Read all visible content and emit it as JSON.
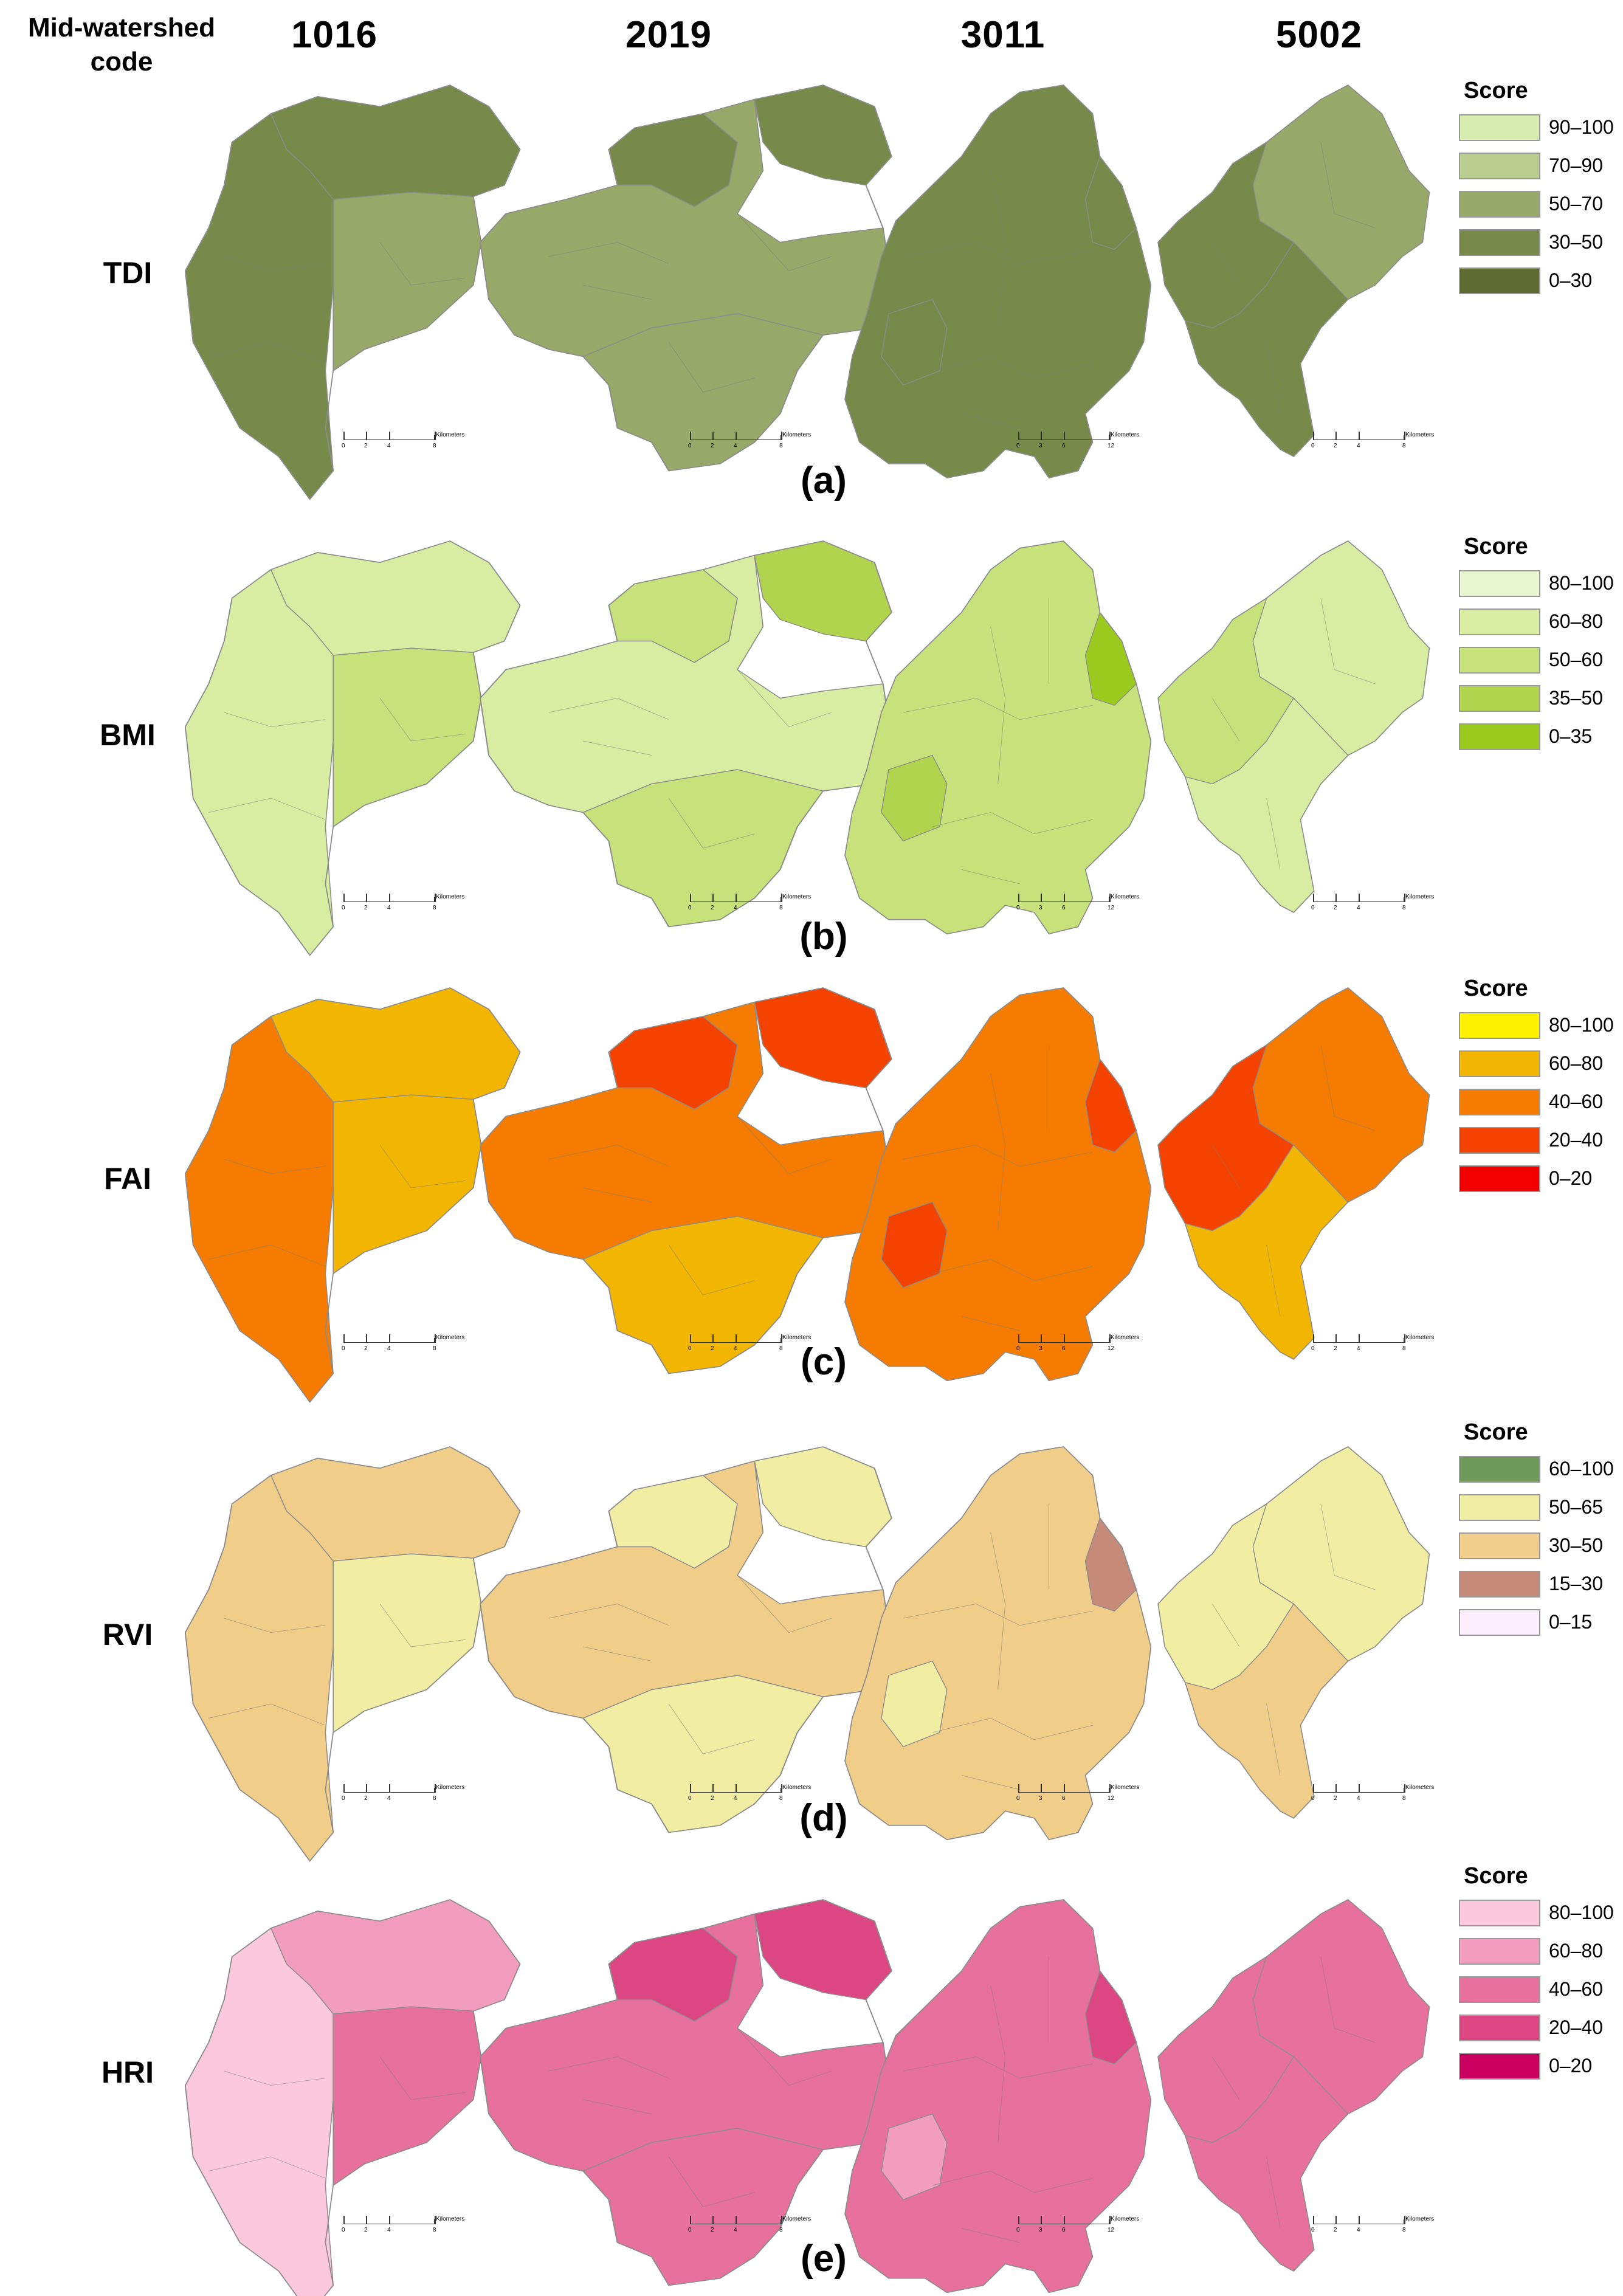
{
  "header": {
    "corner_label_line1": "Mid-watershed",
    "corner_label_line2": "code",
    "columns": [
      "1016",
      "2019",
      "3011",
      "5002"
    ]
  },
  "rows": [
    {
      "label": "TDI",
      "panel": "(a)",
      "legend": {
        "title": "Score",
        "items": [
          {
            "label": "90–100",
            "color": "#d6ecae"
          },
          {
            "label": "70–90",
            "color": "#b9cd8e"
          },
          {
            "label": "50–70",
            "color": "#97a868"
          },
          {
            "label": "30–50",
            "color": "#788a4a"
          },
          {
            "label": "0–30",
            "color": "#5f6b30"
          }
        ]
      },
      "fills": {
        "1016": [
          "#788a4a",
          "#788a4a",
          "#97a868"
        ],
        "2019": [
          "#97a868",
          "#788a4a",
          "#97a868",
          "#788a4a"
        ],
        "3011": [
          "#788a4a",
          "#788a4a",
          "#788a4a"
        ],
        "5002": [
          "#97a868",
          "#788a4a",
          "#788a4a"
        ]
      }
    },
    {
      "label": "BMI",
      "panel": "(b)",
      "legend": {
        "title": "Score",
        "items": [
          {
            "label": "80–100",
            "color": "#eaf6d0"
          },
          {
            "label": "60–80",
            "color": "#d9eda2"
          },
          {
            "label": "50–60",
            "color": "#c7e27a"
          },
          {
            "label": "35–50",
            "color": "#b1d44e"
          },
          {
            "label": "0–35",
            "color": "#9acb1e"
          }
        ]
      },
      "fills": {
        "1016": [
          "#d9eda2",
          "#d9eda2",
          "#c7e27a"
        ],
        "2019": [
          "#d9eda2",
          "#c7e27a",
          "#c7e27a",
          "#b1d44e"
        ],
        "3011": [
          "#c7e27a",
          "#b1d44e",
          "#9acb1e"
        ],
        "5002": [
          "#d9eda2",
          "#c7e27a",
          "#d9eda2"
        ]
      }
    },
    {
      "label": "FAI",
      "panel": "(c)",
      "legend": {
        "title": "Score",
        "items": [
          {
            "label": "80–100",
            "color": "#fff200"
          },
          {
            "label": "60–80",
            "color": "#f3b600"
          },
          {
            "label": "40–60",
            "color": "#f57c00"
          },
          {
            "label": "20–40",
            "color": "#f44300"
          },
          {
            "label": "0–20",
            "color": "#f20000"
          }
        ]
      },
      "fills": {
        "1016": [
          "#f3b600",
          "#f57c00",
          "#f3b600"
        ],
        "2019": [
          "#f57c00",
          "#f44300",
          "#f3b600",
          "#f44300"
        ],
        "3011": [
          "#f57c00",
          "#f44300",
          "#f44300"
        ],
        "5002": [
          "#f57c00",
          "#f44300",
          "#f3b600"
        ]
      }
    },
    {
      "label": "RVI",
      "panel": "(d)",
      "legend": {
        "title": "Score",
        "items": [
          {
            "label": "60–100",
            "color": "#6f9a5a"
          },
          {
            "label": "50–65",
            "color": "#f1eea4"
          },
          {
            "label": "30–50",
            "color": "#f0cd88"
          },
          {
            "label": "15–30",
            "color": "#c58b78"
          },
          {
            "label": "0–15",
            "color": "#fdeefb"
          }
        ]
      },
      "fills": {
        "1016": [
          "#f0cd88",
          "#f0cd88",
          "#f1eea4"
        ],
        "2019": [
          "#f0cd88",
          "#f1eea4",
          "#f1eea4",
          "#f1eea4"
        ],
        "3011": [
          "#f0cd88",
          "#f1eea4",
          "#c58b78"
        ],
        "5002": [
          "#f1eea4",
          "#f1eea4",
          "#f0cd88"
        ]
      }
    },
    {
      "label": "HRI",
      "panel": "(e)",
      "legend": {
        "title": "Score",
        "items": [
          {
            "label": "80–100",
            "color": "#fcc8dc"
          },
          {
            "label": "60–80",
            "color": "#f29dbd"
          },
          {
            "label": "40–60",
            "color": "#e7709c"
          },
          {
            "label": "20–40",
            "color": "#dc4683"
          },
          {
            "label": "0–20",
            "color": "#c90060"
          }
        ]
      },
      "fills": {
        "1016": [
          "#f29dbd",
          "#fcc8dc",
          "#e7709c"
        ],
        "2019": [
          "#e7709c",
          "#dc4683",
          "#e7709c",
          "#dc4683"
        ],
        "3011": [
          "#e7709c",
          "#f29dbd",
          "#dc4683"
        ],
        "5002": [
          "#e7709c",
          "#e7709c",
          "#e7709c"
        ]
      }
    }
  ],
  "scalebars": {
    "unit": "Kilometers",
    "ticks_1016": [
      "0",
      "2",
      "4",
      "8"
    ],
    "ticks_2019": [
      "0",
      "2",
      "4",
      "8"
    ],
    "ticks_3011": [
      "0",
      "3",
      "6",
      "12"
    ],
    "ticks_5002": [
      "0",
      "2",
      "4",
      "8"
    ]
  }
}
